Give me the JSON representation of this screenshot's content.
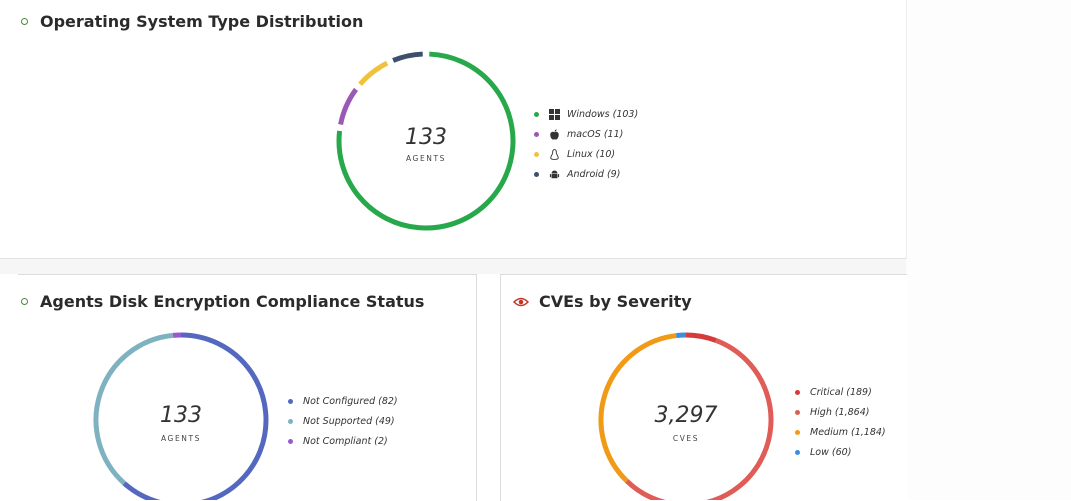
{
  "colors": {
    "windows": "#27a84a",
    "macos": "#9b59b6",
    "linux": "#f0c23b",
    "android": "#3d4f6b",
    "not_configured": "#5468c0",
    "not_supported": "#7fb2c0",
    "not_compliant": "#9b59d0",
    "critical": "#d63a3a",
    "high": "#e05c56",
    "medium": "#f09a16",
    "low": "#3a8ee0"
  },
  "chart_data": [
    {
      "type": "pie",
      "title": "Operating System Type Distribution",
      "center_value": "133",
      "center_label": "AGENTS",
      "categories": [
        "Windows",
        "macOS",
        "Linux",
        "Android"
      ],
      "values": [
        103,
        11,
        10,
        9
      ],
      "legend": [
        "Windows (103)",
        "macOS (11)",
        "Linux (10)",
        "Android (9)"
      ],
      "icons": [
        "windows-icon",
        "apple-icon",
        "linux-icon",
        "android-icon"
      ],
      "legend_position": "right"
    },
    {
      "type": "pie",
      "title": "Agents Disk Encryption Compliance Status",
      "center_value": "133",
      "center_label": "AGENTS",
      "categories": [
        "Not Configured",
        "Not Supported",
        "Not Compliant"
      ],
      "values": [
        82,
        49,
        2
      ],
      "legend": [
        "Not Configured (82)",
        "Not Supported (49)",
        "Not Compliant (2)"
      ],
      "legend_position": "right"
    },
    {
      "type": "pie",
      "title": "CVEs by Severity",
      "center_value": "3,297",
      "center_label": "CVES",
      "categories": [
        "Critical",
        "High",
        "Medium",
        "Low"
      ],
      "values": [
        189,
        1864,
        1184,
        60
      ],
      "legend": [
        "Critical (189)",
        "High (1,864)",
        "Medium (1,184)",
        "Low (60)"
      ],
      "legend_position": "right"
    }
  ]
}
